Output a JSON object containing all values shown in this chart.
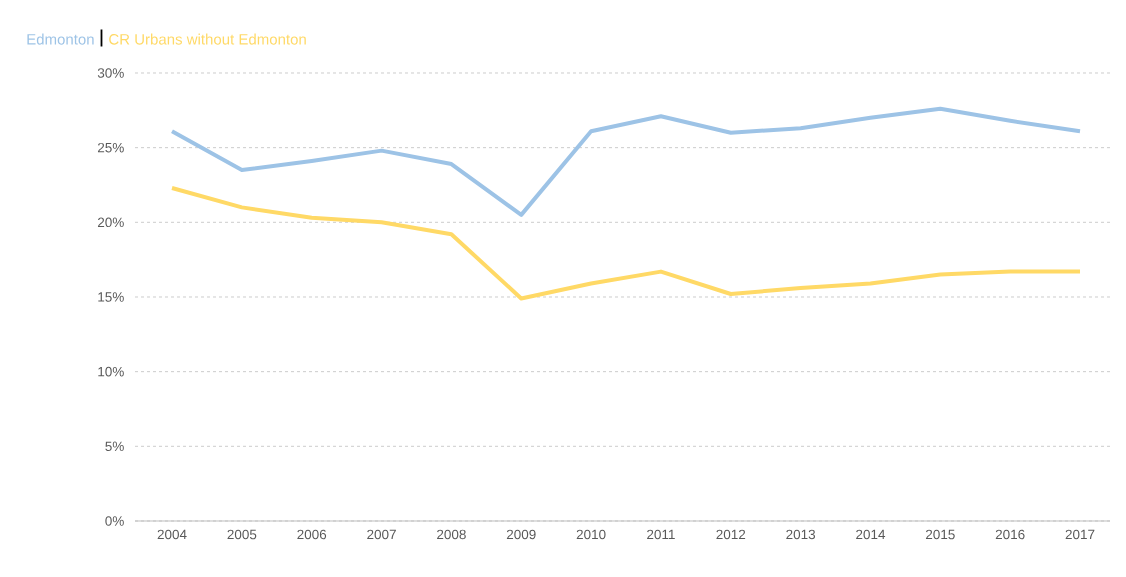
{
  "chart_data": {
    "type": "line",
    "categories": [
      "2004",
      "2005",
      "2006",
      "2007",
      "2008",
      "2009",
      "2010",
      "2011",
      "2012",
      "2013",
      "2014",
      "2015",
      "2016",
      "2017"
    ],
    "series": [
      {
        "name": "Edmonton",
        "color": "#9dc3e6",
        "values": [
          26.1,
          23.5,
          24.1,
          24.8,
          23.9,
          20.5,
          26.1,
          27.1,
          26.0,
          26.3,
          27.0,
          27.6,
          26.8,
          26.1
        ]
      },
      {
        "name": "CR Urbans without Edmonton",
        "color": "#ffd966",
        "values": [
          22.3,
          21.0,
          20.3,
          20.0,
          19.2,
          14.9,
          15.9,
          16.7,
          15.2,
          15.6,
          15.9,
          16.5,
          16.7,
          16.7
        ]
      }
    ],
    "ylim": [
      0,
      30
    ],
    "yticks": [
      {
        "value": 0,
        "label": "0%"
      },
      {
        "value": 5,
        "label": "5%"
      },
      {
        "value": 10,
        "label": "10%"
      },
      {
        "value": 15,
        "label": "15%"
      },
      {
        "value": 20,
        "label": "20%"
      },
      {
        "value": 25,
        "label": "25%"
      },
      {
        "value": 30,
        "label": "30%"
      }
    ],
    "grid": "y",
    "legend": "top left",
    "marker": "none",
    "line_style": "solid"
  }
}
